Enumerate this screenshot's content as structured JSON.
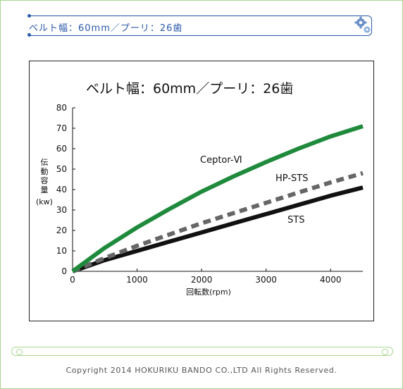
{
  "header": {
    "title": "ベルト幅：60mm／プーリ：26歯"
  },
  "chart_data": {
    "type": "line",
    "title": "ベルト幅：60mm／プーリ：26歯",
    "xlabel": "回転数(rpm)",
    "ylabel_chars": [
      "伝",
      "動",
      "容",
      "量"
    ],
    "ylabel_unit": "(kw)",
    "xlim": [
      0,
      4500
    ],
    "ylim": [
      0,
      80
    ],
    "xticks": [
      0,
      1000,
      2000,
      3000,
      4000
    ],
    "yticks": [
      0,
      10,
      20,
      30,
      40,
      50,
      60,
      70,
      80
    ],
    "grid": false,
    "series": [
      {
        "name": "Ceptor-Ⅵ",
        "color": "#1f8a3c",
        "style": "solid",
        "x": [
          0,
          500,
          1000,
          1500,
          2000,
          2500,
          3000,
          3500,
          4000,
          4500
        ],
        "y": [
          0,
          11.5,
          21.5,
          30.5,
          39,
          46.5,
          53.5,
          60,
          66,
          71
        ]
      },
      {
        "name": "HP-STS",
        "color": "#666666",
        "style": "dashed",
        "x": [
          0,
          500,
          1000,
          1500,
          2000,
          2500,
          3000,
          3500,
          4000,
          4500
        ],
        "y": [
          0,
          6.5,
          12.5,
          18,
          23.5,
          28.5,
          33.5,
          38.5,
          43.5,
          48
        ]
      },
      {
        "name": "STS",
        "color": "#111111",
        "style": "solid",
        "x": [
          0,
          500,
          1000,
          1500,
          2000,
          2500,
          3000,
          3500,
          4000,
          4500
        ],
        "y": [
          0,
          5.5,
          10,
          14.5,
          19,
          23.5,
          28,
          32.5,
          37,
          41
        ]
      }
    ]
  },
  "footer": {
    "copyright": "Copyright  2014 HOKURIKU BANDO CO.,LTD All Rights Reserved."
  }
}
